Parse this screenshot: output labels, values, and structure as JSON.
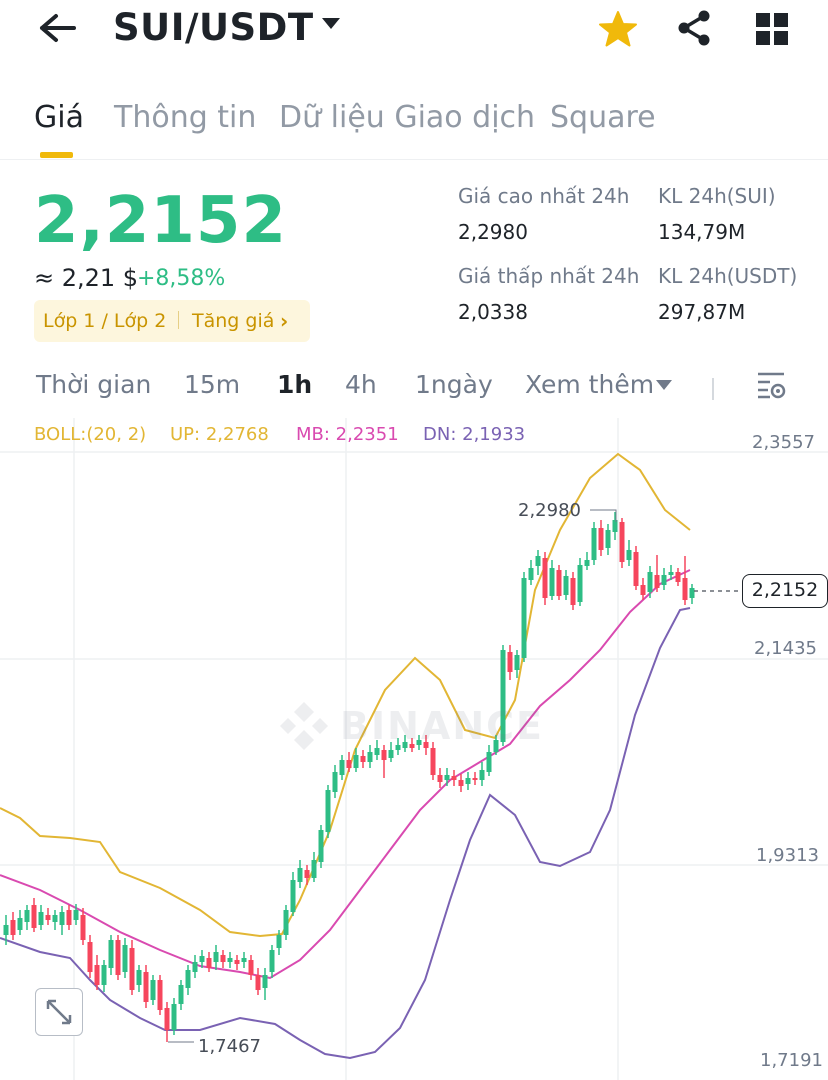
{
  "header": {
    "pair": "SUI/USDT",
    "icons": [
      "back-arrow-icon",
      "dropdown-caret-icon",
      "star-icon",
      "share-icon",
      "grid-icon"
    ],
    "star_color": "#f0b90b"
  },
  "tabs": [
    "Giá",
    "Thông tin",
    "Dữ liệu Giao dịch",
    "Square"
  ],
  "active_tab": "Giá",
  "ticker": {
    "last_price": "2,2152",
    "approx_usd": "≈ 2,21 $",
    "change_pct": "+8,58%",
    "layer_label": "Lớp 1 / Lớp 2",
    "tag_label": "Tăng giá",
    "high_label": "Giá cao nhất 24h",
    "high_value": "2,2980",
    "low_label": "Giá thấp nhất 24h",
    "low_value": "2,0338",
    "vol_base_label": "KL 24h(SUI)",
    "vol_base_value": "134,79M",
    "vol_quote_label": "KL 24h(USDT)",
    "vol_quote_value": "297,87M"
  },
  "intervals": {
    "items": [
      "Thời gian",
      "15m",
      "1h",
      "4h",
      "1ngày",
      "Xem thêm"
    ],
    "active": "1h"
  },
  "boll": {
    "label": "BOLL:(20, 2)",
    "up": "UP: 2,2768",
    "mb": "MB: 2,2351",
    "dn": "DN: 2,1933"
  },
  "colors": {
    "up": "#2ebd85",
    "down": "#f6465d",
    "boll_up": "#e2b634",
    "boll_mb": "#d94ab0",
    "boll_dn": "#7a62b3",
    "accent": "#f0b90b"
  },
  "chart": {
    "y_axis_labels": [
      "2,3557",
      "2,1435",
      "1,9313",
      "1,7191"
    ],
    "current_price_tag": "2,2152",
    "high_marker": "2,2980",
    "low_marker": "1,7467",
    "watermark": "BINANCE"
  }
}
